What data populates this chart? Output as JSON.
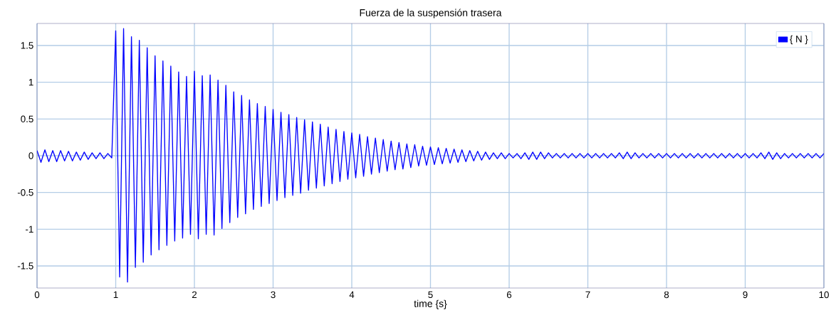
{
  "chart_data": {
    "type": "line",
    "title": "Fuerza de la suspensión trasera",
    "xlabel": "time {s}",
    "x": [
      0,
      0.05,
      0.1,
      0.15,
      0.2,
      0.25,
      0.3,
      0.35,
      0.4,
      0.45,
      0.5,
      0.55,
      0.6,
      0.65,
      0.7,
      0.75,
      0.8,
      0.85,
      0.9,
      0.95,
      1,
      1.05,
      1.1,
      1.15,
      1.2,
      1.25,
      1.3,
      1.35,
      1.4,
      1.45,
      1.5,
      1.55,
      1.6,
      1.65,
      1.7,
      1.75,
      1.8,
      1.85,
      1.9,
      1.95,
      2,
      2.05,
      2.1,
      2.15,
      2.2,
      2.25,
      2.3,
      2.35,
      2.4,
      2.45,
      2.5,
      2.55,
      2.6,
      2.65,
      2.7,
      2.75,
      2.8,
      2.85,
      2.9,
      2.95,
      3,
      3.05,
      3.1,
      3.15,
      3.2,
      3.25,
      3.3,
      3.35,
      3.4,
      3.45,
      3.5,
      3.55,
      3.6,
      3.65,
      3.7,
      3.75,
      3.8,
      3.85,
      3.9,
      3.95,
      4,
      4.05,
      4.1,
      4.15,
      4.2,
      4.25,
      4.3,
      4.35,
      4.4,
      4.45,
      4.5,
      4.55,
      4.6,
      4.65,
      4.7,
      4.75,
      4.8,
      4.85,
      4.9,
      4.95,
      5,
      5.05,
      5.1,
      5.15,
      5.2,
      5.25,
      5.3,
      5.35,
      5.4,
      5.45,
      5.5,
      5.55,
      5.6,
      5.65,
      5.7,
      5.75,
      5.8,
      5.85,
      5.9,
      5.95,
      6,
      6.05,
      6.1,
      6.15,
      6.2,
      6.25,
      6.3,
      6.35,
      6.4,
      6.45,
      6.5,
      6.55,
      6.6,
      6.65,
      6.7,
      6.75,
      6.8,
      6.85,
      6.9,
      6.95,
      7,
      7.05,
      7.1,
      7.15,
      7.2,
      7.25,
      7.3,
      7.35,
      7.4,
      7.45,
      7.5,
      7.55,
      7.6,
      7.65,
      7.7,
      7.75,
      7.8,
      7.85,
      7.9,
      7.95,
      8,
      8.05,
      8.1,
      8.15,
      8.2,
      8.25,
      8.3,
      8.35,
      8.4,
      8.45,
      8.5,
      8.55,
      8.6,
      8.65,
      8.7,
      8.75,
      8.8,
      8.85,
      8.9,
      8.95,
      9,
      9.05,
      9.1,
      9.15,
      9.2,
      9.25,
      9.3,
      9.35,
      9.4,
      9.45,
      9.5,
      9.55,
      9.6,
      9.65,
      9.7,
      9.75,
      9.8,
      9.85,
      9.9,
      9.95,
      10
    ],
    "series": [
      {
        "name": "{ N }",
        "color": "#0000ff",
        "values": [
          0.07,
          -0.09,
          0.08,
          -0.08,
          0.07,
          -0.08,
          0.07,
          -0.07,
          0.06,
          -0.07,
          0.05,
          -0.06,
          0.05,
          -0.05,
          0.04,
          -0.04,
          0.04,
          -0.04,
          0.03,
          -0.03,
          1.7,
          -1.65,
          1.73,
          -1.72,
          1.62,
          -1.52,
          1.57,
          -1.45,
          1.47,
          -1.35,
          1.36,
          -1.28,
          1.29,
          -1.22,
          1.22,
          -1.16,
          1.14,
          -1.12,
          1.08,
          -1.07,
          1.15,
          -1.13,
          1.09,
          -1.07,
          1.1,
          -1.08,
          1.03,
          -0.99,
          0.96,
          -0.91,
          0.87,
          -0.84,
          0.82,
          -0.79,
          0.76,
          -0.73,
          0.71,
          -0.69,
          0.67,
          -0.65,
          0.63,
          -0.61,
          0.59,
          -0.57,
          0.56,
          -0.54,
          0.52,
          -0.51,
          0.49,
          -0.47,
          0.46,
          -0.44,
          0.43,
          -0.41,
          0.39,
          -0.38,
          0.36,
          -0.35,
          0.33,
          -0.32,
          0.31,
          -0.3,
          0.29,
          -0.28,
          0.26,
          -0.25,
          0.24,
          -0.23,
          0.22,
          -0.21,
          0.2,
          -0.19,
          0.18,
          -0.18,
          0.16,
          -0.16,
          0.15,
          -0.14,
          0.13,
          -0.13,
          0.12,
          -0.12,
          0.11,
          -0.11,
          0.1,
          -0.1,
          0.09,
          -0.09,
          0.08,
          -0.08,
          0.07,
          -0.07,
          0.06,
          -0.06,
          0.05,
          -0.05,
          0.04,
          -0.04,
          0.04,
          -0.04,
          0.03,
          -0.03,
          0.03,
          -0.04,
          0.04,
          -0.05,
          0.05,
          -0.05,
          0.05,
          -0.04,
          0.04,
          -0.03,
          0.03,
          -0.03,
          0.03,
          -0.03,
          0.03,
          -0.03,
          0.03,
          -0.03,
          0.03,
          -0.03,
          0.03,
          -0.03,
          0.03,
          -0.03,
          0.03,
          -0.03,
          0.04,
          -0.04,
          0.05,
          -0.04,
          0.04,
          -0.03,
          0.03,
          -0.03,
          0.03,
          -0.03,
          0.03,
          -0.03,
          0.03,
          -0.03,
          0.03,
          -0.03,
          0.03,
          -0.03,
          0.03,
          -0.03,
          0.03,
          -0.03,
          0.03,
          -0.03,
          0.03,
          -0.03,
          0.03,
          -0.03,
          0.03,
          -0.03,
          0.03,
          -0.03,
          0.03,
          -0.03,
          0.03,
          -0.03,
          0.04,
          -0.04,
          0.05,
          -0.05,
          0.04,
          -0.04,
          0.03,
          -0.03,
          0.03,
          -0.03,
          0.03,
          -0.03,
          0.03,
          -0.03,
          0.03,
          -0.03,
          0.03
        ]
      }
    ],
    "xlim": [
      0,
      10
    ],
    "ylim": [
      -1.8,
      1.8
    ],
    "xticks": [
      0,
      1,
      2,
      3,
      4,
      5,
      6,
      7,
      8,
      9,
      10
    ],
    "yticks": [
      -1.5,
      -1,
      -0.5,
      0,
      0.5,
      1,
      1.5
    ],
    "grid": true,
    "legend": "top right",
    "marker": "none",
    "line_style": "solid"
  }
}
